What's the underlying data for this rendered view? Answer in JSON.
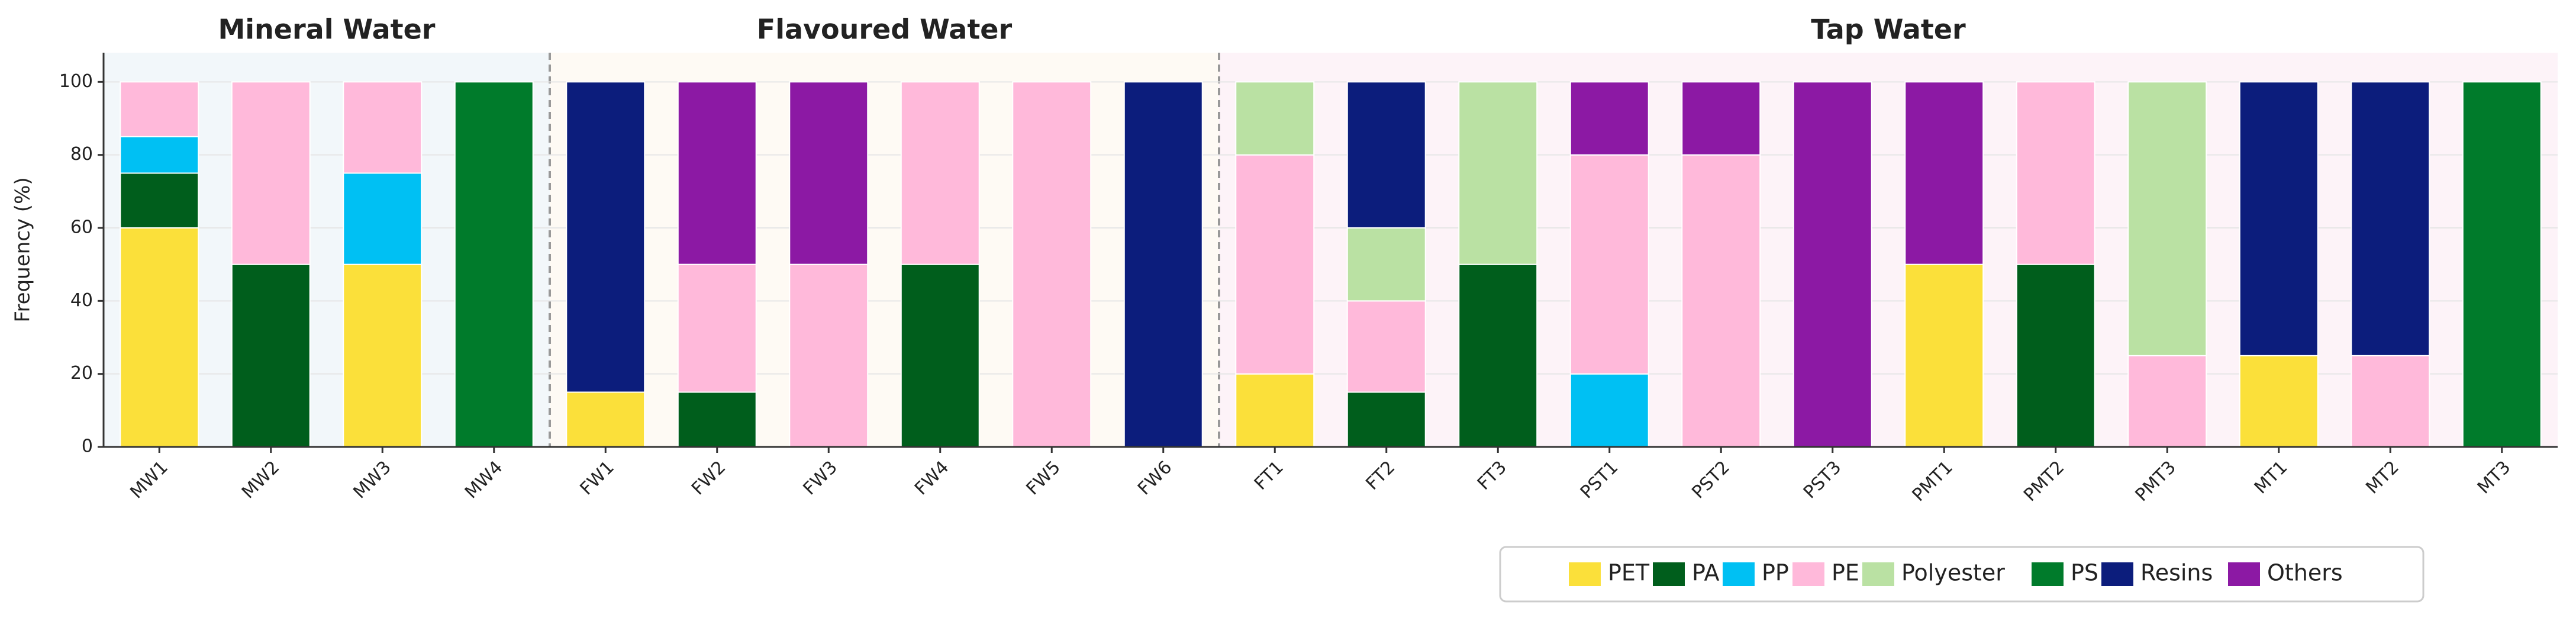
{
  "chart_data": {
    "type": "stacked_bar",
    "y_label": "Frequency (%)",
    "groups": [
      {
        "name": "Mineral Water",
        "color": "#f2f7fa",
        "categories": [
          "MW1",
          "MW2",
          "MW3",
          "MW4"
        ]
      },
      {
        "name": "Flavoured Water",
        "color": "#fefaf4",
        "categories": [
          "FW1",
          "FW2",
          "FW3",
          "FW4",
          "FW5",
          "FW6"
        ]
      },
      {
        "name": "Tap Water",
        "color": "#fdf3f8",
        "categories": [
          "FT1",
          "FT2",
          "FT3",
          "PST1",
          "PST2",
          "PST3",
          "PMT1",
          "PMT2",
          "PMT3",
          "MT1",
          "MT2",
          "MT3"
        ]
      }
    ],
    "series": [
      {
        "name": "PET",
        "color": "#fbe03a",
        "values": [
          60,
          0,
          50,
          0,
          15,
          0,
          0,
          0,
          0,
          0,
          20,
          0,
          0,
          0,
          0,
          0,
          50,
          0,
          0,
          25,
          0,
          0
        ]
      },
      {
        "name": "PA",
        "color": "#005e1c",
        "values": [
          15,
          50,
          0,
          0,
          0,
          15,
          0,
          50,
          0,
          0,
          0,
          15,
          50,
          0,
          0,
          0,
          0,
          50,
          0,
          0,
          0,
          0
        ]
      },
      {
        "name": "PP",
        "color": "#00c0f3",
        "values": [
          10,
          0,
          25,
          0,
          0,
          0,
          0,
          0,
          0,
          0,
          0,
          0,
          0,
          20,
          0,
          0,
          0,
          0,
          0,
          0,
          0,
          0
        ]
      },
      {
        "name": "PE",
        "color": "#ffb9da",
        "values": [
          15,
          50,
          25,
          0,
          0,
          35,
          50,
          50,
          100,
          0,
          60,
          25,
          0,
          60,
          80,
          0,
          0,
          50,
          25,
          0,
          25,
          0
        ]
      },
      {
        "name": "Polyester",
        "color": "#bae1a3",
        "values": [
          0,
          0,
          0,
          0,
          0,
          0,
          0,
          0,
          0,
          0,
          20,
          20,
          50,
          0,
          0,
          0,
          0,
          0,
          75,
          0,
          0,
          0
        ]
      },
      {
        "name": "PS",
        "color": "#007b2b",
        "values": [
          0,
          0,
          0,
          100,
          0,
          0,
          0,
          0,
          0,
          0,
          0,
          0,
          0,
          0,
          0,
          0,
          0,
          0,
          0,
          0,
          0,
          100
        ]
      },
      {
        "name": "Resins",
        "color": "#0c1d7c",
        "values": [
          0,
          0,
          0,
          0,
          85,
          0,
          0,
          0,
          0,
          100,
          0,
          40,
          0,
          0,
          0,
          0,
          0,
          0,
          0,
          75,
          75,
          0
        ]
      },
      {
        "name": "Others",
        "color": "#8c19a4",
        "values": [
          0,
          0,
          0,
          0,
          0,
          50,
          50,
          0,
          0,
          0,
          0,
          0,
          0,
          20,
          20,
          100,
          50,
          0,
          0,
          0,
          0,
          0
        ]
      }
    ],
    "ylim": [
      0,
      108
    ],
    "yticks": [
      0,
      20,
      40,
      60,
      80,
      100
    ],
    "grid": true,
    "legend": "bottom right"
  }
}
